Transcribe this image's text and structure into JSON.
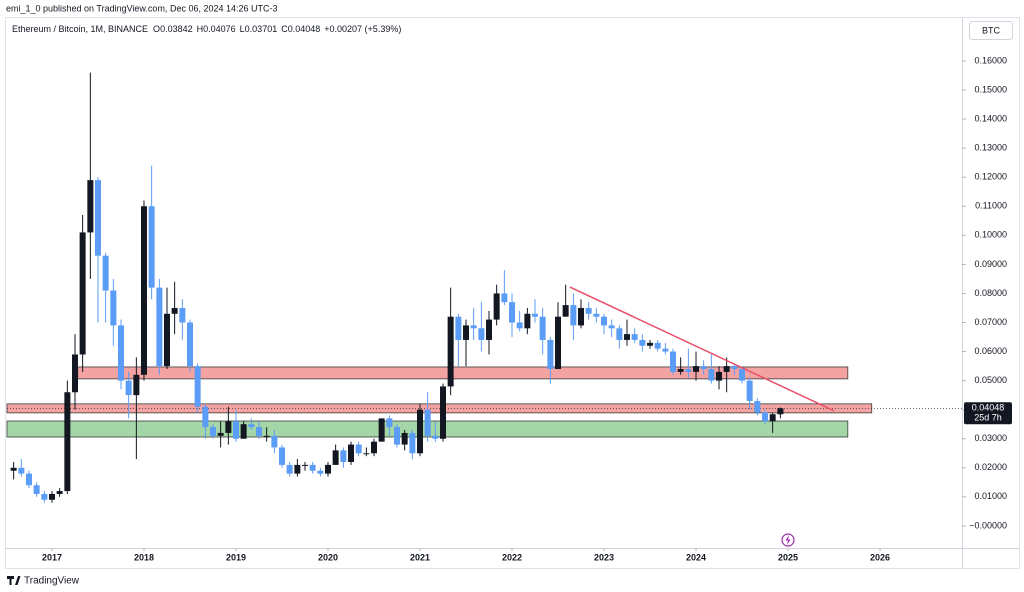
{
  "publisher_line": "emi_1_0 published on TradingView.com, Dec 06, 2024 14:26 UTC-3",
  "footer_brand": "TradingView",
  "chart_data": {
    "type": "candlestick",
    "symbol": "Ethereum / Bitcoin, 1M, BINANCE",
    "field_labels": [
      "O",
      "H",
      "L",
      "C"
    ],
    "change": "+0.00207 (+5.39%)",
    "currency": "BTC",
    "countdown": "25d 7h",
    "up_color": "#131722",
    "down_color": "#5b9cf6",
    "x": [
      2016.583,
      2016.667,
      2016.75,
      2016.833,
      2016.917,
      2017,
      2017.083,
      2017.167,
      2017.25,
      2017.333,
      2017.417,
      2017.5,
      2017.583,
      2017.667,
      2017.75,
      2017.833,
      2017.917,
      2018,
      2018.083,
      2018.167,
      2018.25,
      2018.333,
      2018.417,
      2018.5,
      2018.583,
      2018.667,
      2018.75,
      2018.833,
      2018.917,
      2019,
      2019.083,
      2019.167,
      2019.25,
      2019.333,
      2019.417,
      2019.5,
      2019.583,
      2019.667,
      2019.75,
      2019.833,
      2019.917,
      2020,
      2020.083,
      2020.167,
      2020.25,
      2020.333,
      2020.417,
      2020.5,
      2020.583,
      2020.667,
      2020.75,
      2020.833,
      2020.917,
      2021,
      2021.083,
      2021.167,
      2021.25,
      2021.333,
      2021.417,
      2021.5,
      2021.583,
      2021.667,
      2021.75,
      2021.833,
      2021.917,
      2022,
      2022.083,
      2022.167,
      2022.25,
      2022.333,
      2022.417,
      2022.5,
      2022.583,
      2022.667,
      2022.75,
      2022.833,
      2022.917,
      2023,
      2023.083,
      2023.167,
      2023.25,
      2023.333,
      2023.417,
      2023.5,
      2023.583,
      2023.667,
      2023.75,
      2023.833,
      2023.917,
      2024,
      2024.083,
      2024.167,
      2024.25,
      2024.333,
      2024.417,
      2024.5,
      2024.583,
      2024.667,
      2024.75,
      2024.833,
      2024.917
    ],
    "series": [
      {
        "name": "ETHBTC",
        "values": [
          [
            0.019,
            0.022,
            0.016,
            0.02
          ],
          [
            0.02,
            0.023,
            0.017,
            0.018
          ],
          [
            0.018,
            0.019,
            0.013,
            0.014
          ],
          [
            0.014,
            0.015,
            0.01,
            0.011
          ],
          [
            0.011,
            0.012,
            0.008,
            0.009
          ],
          [
            0.009,
            0.012,
            0.008,
            0.011
          ],
          [
            0.011,
            0.013,
            0.01,
            0.012
          ],
          [
            0.012,
            0.05,
            0.011,
            0.046
          ],
          [
            0.046,
            0.066,
            0.04,
            0.059
          ],
          [
            0.059,
            0.107,
            0.053,
            0.101
          ],
          [
            0.101,
            0.156,
            0.085,
            0.119
          ],
          [
            0.119,
            0.12,
            0.07,
            0.093
          ],
          [
            0.093,
            0.094,
            0.07,
            0.081
          ],
          [
            0.081,
            0.085,
            0.062,
            0.069
          ],
          [
            0.069,
            0.071,
            0.047,
            0.05
          ],
          [
            0.05,
            0.053,
            0.037,
            0.045
          ],
          [
            0.045,
            0.058,
            0.023,
            0.052
          ],
          [
            0.052,
            0.112,
            0.05,
            0.11
          ],
          [
            0.11,
            0.124,
            0.078,
            0.082
          ],
          [
            0.082,
            0.085,
            0.052,
            0.055
          ],
          [
            0.055,
            0.082,
            0.054,
            0.073
          ],
          [
            0.073,
            0.084,
            0.066,
            0.075
          ],
          [
            0.075,
            0.078,
            0.064,
            0.07
          ],
          [
            0.07,
            0.071,
            0.053,
            0.055
          ],
          [
            0.055,
            0.056,
            0.039,
            0.041
          ],
          [
            0.041,
            0.042,
            0.03,
            0.034
          ],
          [
            0.034,
            0.035,
            0.03,
            0.031
          ],
          [
            0.031,
            0.036,
            0.027,
            0.032
          ],
          [
            0.032,
            0.041,
            0.028,
            0.036
          ],
          [
            0.036,
            0.04,
            0.029,
            0.03
          ],
          [
            0.03,
            0.036,
            0.03,
            0.035
          ],
          [
            0.035,
            0.037,
            0.033,
            0.034
          ],
          [
            0.034,
            0.036,
            0.03,
            0.031
          ],
          [
            0.031,
            0.034,
            0.029,
            0.031
          ],
          [
            0.031,
            0.033,
            0.025,
            0.027
          ],
          [
            0.027,
            0.028,
            0.02,
            0.021
          ],
          [
            0.021,
            0.022,
            0.017,
            0.018
          ],
          [
            0.018,
            0.023,
            0.017,
            0.021
          ],
          [
            0.021,
            0.022,
            0.019,
            0.021
          ],
          [
            0.021,
            0.022,
            0.018,
            0.019
          ],
          [
            0.019,
            0.02,
            0.017,
            0.018
          ],
          [
            0.018,
            0.022,
            0.017,
            0.021
          ],
          [
            0.021,
            0.028,
            0.021,
            0.026
          ],
          [
            0.026,
            0.027,
            0.02,
            0.022
          ],
          [
            0.022,
            0.029,
            0.021,
            0.028
          ],
          [
            0.028,
            0.029,
            0.024,
            0.025
          ],
          [
            0.025,
            0.027,
            0.024,
            0.025
          ],
          [
            0.025,
            0.03,
            0.024,
            0.029
          ],
          [
            0.029,
            0.037,
            0.029,
            0.037
          ],
          [
            0.037,
            0.038,
            0.031,
            0.034
          ],
          [
            0.034,
            0.035,
            0.027,
            0.028
          ],
          [
            0.028,
            0.033,
            0.026,
            0.032
          ],
          [
            0.032,
            0.033,
            0.023,
            0.025
          ],
          [
            0.025,
            0.042,
            0.024,
            0.04
          ],
          [
            0.04,
            0.046,
            0.029,
            0.031
          ],
          [
            0.031,
            0.036,
            0.029,
            0.03
          ],
          [
            0.03,
            0.049,
            0.029,
            0.048
          ],
          [
            0.048,
            0.082,
            0.045,
            0.072
          ],
          [
            0.072,
            0.073,
            0.055,
            0.064
          ],
          [
            0.064,
            0.071,
            0.055,
            0.069
          ],
          [
            0.069,
            0.075,
            0.064,
            0.068
          ],
          [
            0.068,
            0.077,
            0.06,
            0.064
          ],
          [
            0.064,
            0.074,
            0.059,
            0.071
          ],
          [
            0.071,
            0.083,
            0.069,
            0.08
          ],
          [
            0.08,
            0.088,
            0.076,
            0.077
          ],
          [
            0.077,
            0.08,
            0.065,
            0.07
          ],
          [
            0.07,
            0.074,
            0.067,
            0.068
          ],
          [
            0.068,
            0.075,
            0.066,
            0.073
          ],
          [
            0.073,
            0.078,
            0.07,
            0.072
          ],
          [
            0.072,
            0.075,
            0.059,
            0.064
          ],
          [
            0.064,
            0.065,
            0.049,
            0.054
          ],
          [
            0.054,
            0.077,
            0.054,
            0.072
          ],
          [
            0.072,
            0.083,
            0.072,
            0.076
          ],
          [
            0.076,
            0.08,
            0.064,
            0.069
          ],
          [
            0.069,
            0.078,
            0.068,
            0.075
          ],
          [
            0.075,
            0.077,
            0.071,
            0.073
          ],
          [
            0.073,
            0.075,
            0.07,
            0.072
          ],
          [
            0.072,
            0.073,
            0.066,
            0.069
          ],
          [
            0.069,
            0.071,
            0.065,
            0.068
          ],
          [
            0.068,
            0.069,
            0.061,
            0.064
          ],
          [
            0.064,
            0.071,
            0.062,
            0.066
          ],
          [
            0.066,
            0.068,
            0.063,
            0.064
          ],
          [
            0.064,
            0.066,
            0.06,
            0.062
          ],
          [
            0.062,
            0.064,
            0.061,
            0.063
          ],
          [
            0.063,
            0.064,
            0.06,
            0.061
          ],
          [
            0.061,
            0.063,
            0.059,
            0.06
          ],
          [
            0.06,
            0.061,
            0.052,
            0.053
          ],
          [
            0.053,
            0.058,
            0.052,
            0.054
          ],
          [
            0.054,
            0.061,
            0.051,
            0.053
          ],
          [
            0.053,
            0.06,
            0.05,
            0.055
          ],
          [
            0.055,
            0.057,
            0.052,
            0.054
          ],
          [
            0.054,
            0.059,
            0.049,
            0.05
          ],
          [
            0.05,
            0.055,
            0.047,
            0.053
          ],
          [
            0.053,
            0.058,
            0.046,
            0.055
          ],
          [
            0.055,
            0.056,
            0.052,
            0.054
          ],
          [
            0.054,
            0.055,
            0.049,
            0.05
          ],
          [
            0.05,
            0.051,
            0.04,
            0.043
          ],
          [
            0.043,
            0.044,
            0.038,
            0.039
          ],
          [
            0.039,
            0.04,
            0.035,
            0.036
          ],
          [
            0.036,
            0.039,
            0.032,
            0.03842
          ],
          [
            0.03842,
            0.04076,
            0.03701,
            0.04048
          ]
        ]
      }
    ],
    "zones": [
      {
        "ylim": [
          0.0506,
          0.0547
        ],
        "xlim": [
          2017.28,
          2025.65
        ],
        "color": "#f4a3a3"
      },
      {
        "ylim": [
          0.0389,
          0.042
        ],
        "xlim": [
          2016.511,
          2025.91
        ],
        "color": "#f4a3a3"
      },
      {
        "ylim": [
          0.0306,
          0.0361
        ],
        "xlim": [
          2016.511,
          2025.65
        ],
        "color": "#a5d6a7"
      }
    ],
    "trendline": {
      "x": [
        2022.63,
        2025.5
      ],
      "y": [
        0.0822,
        0.0396
      ],
      "color": "#e8506a"
    },
    "xlim": [
      2016.511,
      2026.891
    ],
    "xticks": [
      2017,
      2018,
      2019,
      2020,
      2021,
      2022,
      2023,
      2024,
      2025,
      2026
    ],
    "ylim": [
      -0.0076,
      0.1741
    ],
    "yticks": [
      {
        "value": 0.16,
        "label": "0.16000"
      },
      {
        "value": 0.15,
        "label": "0.15000"
      },
      {
        "value": 0.14,
        "label": "0.14000"
      },
      {
        "value": 0.13,
        "label": "0.13000"
      },
      {
        "value": 0.12,
        "label": "0.12000"
      },
      {
        "value": 0.11,
        "label": "0.11000"
      },
      {
        "value": 0.1,
        "label": "0.10000"
      },
      {
        "value": 0.09,
        "label": "0.09000"
      },
      {
        "value": 0.08,
        "label": "0.08000"
      },
      {
        "value": 0.07,
        "label": "0.07000"
      },
      {
        "value": 0.06,
        "label": "0.06000"
      },
      {
        "value": 0.05,
        "label": "0.05000"
      },
      {
        "value": 0.04,
        "label": "0.04000"
      },
      {
        "value": 0.03,
        "label": "0.03000"
      },
      {
        "value": 0.02,
        "label": "0.02000"
      },
      {
        "value": 0.01,
        "label": "0.01000"
      },
      {
        "value": 0,
        "label": "−0.00000"
      }
    ],
    "grid": false
  }
}
